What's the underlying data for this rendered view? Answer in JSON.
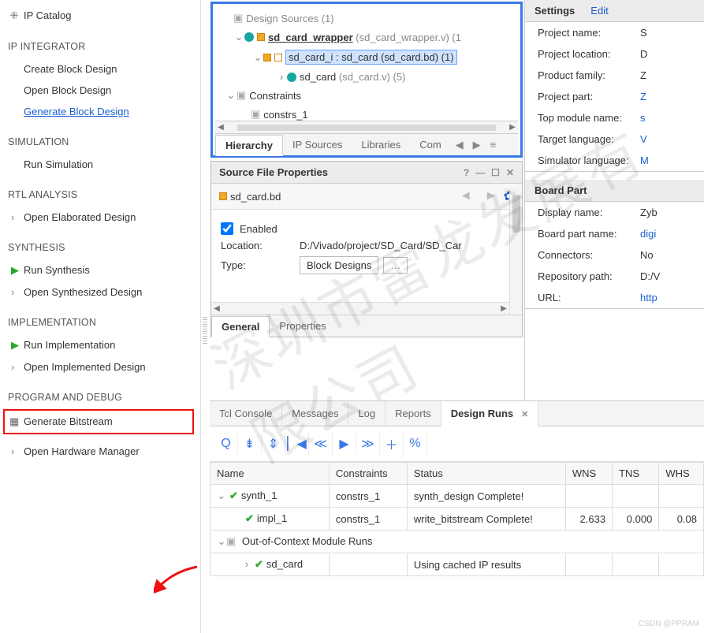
{
  "nav": {
    "ip_catalog": "IP Catalog",
    "integrator": "IP INTEGRATOR",
    "create_bd": "Create Block Design",
    "open_bd": "Open Block Design",
    "generate_bd": "Generate Block Design",
    "simulation": "SIMULATION",
    "run_sim": "Run Simulation",
    "rtl": "RTL ANALYSIS",
    "elab": "Open Elaborated Design",
    "synthesis": "SYNTHESIS",
    "run_synth": "Run Synthesis",
    "open_synth": "Open Synthesized Design",
    "impl": "IMPLEMENTATION",
    "run_impl": "Run Implementation",
    "open_impl": "Open Implemented Design",
    "prog": "PROGRAM AND DEBUG",
    "gen_bit": "Generate Bitstream",
    "open_hw": "Open Hardware Manager"
  },
  "tree": {
    "design_sources": "Design Sources",
    "design_sources_count": "(1)",
    "wrapper": "sd_card_wrapper",
    "wrapper_suffix": "(sd_card_wrapper.v) (1",
    "instance": "sd_card_i : sd_card (sd_card.bd) (1)",
    "module": "sd_card",
    "module_suffix": "(sd_card.v) (5)",
    "constraints": "Constraints",
    "constrs1": "constrs_1",
    "tabs": {
      "hierarchy": "Hierarchy",
      "ip_sources": "IP Sources",
      "libraries": "Libraries",
      "compile": "Com"
    }
  },
  "props": {
    "title": "Source File Properties",
    "file": "sd_card.bd",
    "enabled_label": "Enabled",
    "enabled": true,
    "location_label": "Location:",
    "location": "D:/Vivado/project/SD_Card/SD_Car",
    "type_label": "Type:",
    "type": "Block Designs",
    "tab_general": "General",
    "tab_properties": "Properties"
  },
  "runs": {
    "tabs": {
      "tcl": "Tcl Console",
      "msg": "Messages",
      "log": "Log",
      "report": "Reports",
      "runs": "Design Runs"
    },
    "cols": {
      "name": "Name",
      "constraints": "Constraints",
      "status": "Status",
      "wns": "WNS",
      "tns": "TNS",
      "whs": "WHS"
    },
    "synth": {
      "name": "synth_1",
      "constraints": "constrs_1",
      "status": "synth_design Complete!"
    },
    "impl": {
      "name": "impl_1",
      "constraints": "constrs_1",
      "status": "write_bitstream Complete!",
      "wns": "2.633",
      "tns": "0.000",
      "whs": "0.08"
    },
    "ooc_head": "Out-of-Context Module Runs",
    "ooc": {
      "name": "sd_card",
      "status": "Using cached IP results"
    }
  },
  "settings": {
    "title": "Settings",
    "edit": "Edit",
    "rows": [
      {
        "k": "Project name:",
        "v": "S"
      },
      {
        "k": "Project location:",
        "v": "D"
      },
      {
        "k": "Product family:",
        "v": "Z"
      },
      {
        "k": "Project part:",
        "v": "Z",
        "link": true
      },
      {
        "k": "Top module name:",
        "v": "s",
        "link": true
      },
      {
        "k": "Target language:",
        "v": "V",
        "link": true
      },
      {
        "k": "Simulator language:",
        "v": "M",
        "link": true
      }
    ],
    "board_title": "Board Part",
    "board_rows": [
      {
        "k": "Display name:",
        "v": "Zyb"
      },
      {
        "k": "Board part name:",
        "v": "digi",
        "link": true
      },
      {
        "k": "Connectors:",
        "v": "No"
      },
      {
        "k": "Repository path:",
        "v": "D:/V"
      },
      {
        "k": "URL:",
        "v": "http",
        "link": true
      }
    ]
  },
  "colors": {
    "accent": "#3b78e7",
    "red": "#e11",
    "green": "#2aa72a"
  },
  "watermark": "深圳市雷龙发展有限公司",
  "credit": "CSDN @PPRAM"
}
